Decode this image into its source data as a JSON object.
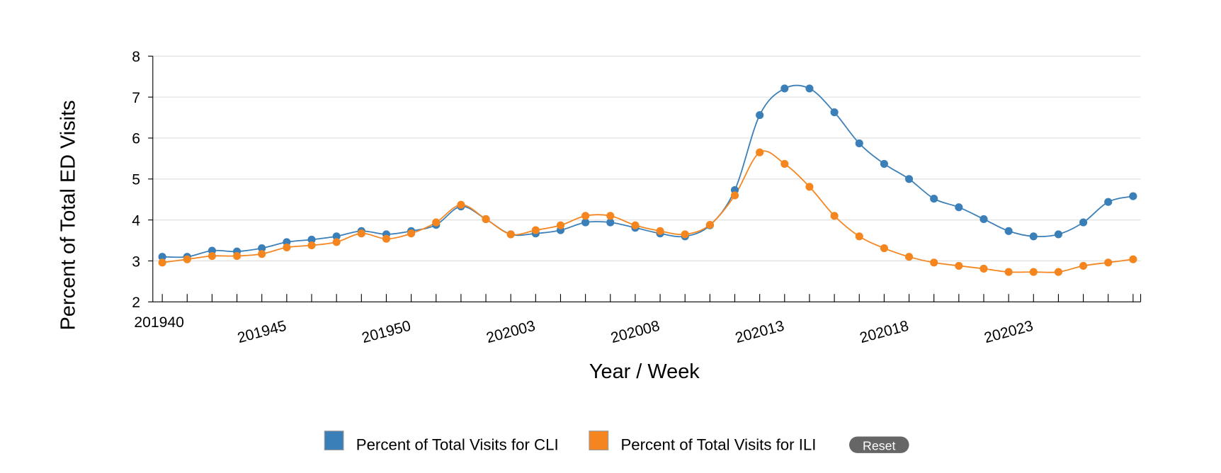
{
  "chart_data": {
    "type": "line",
    "ylabel": "Percent of Total ED Visits",
    "xlabel": "Year / Week",
    "categories": [
      "201940",
      null,
      null,
      null,
      null,
      "201945",
      null,
      null,
      null,
      null,
      "201950",
      null,
      null,
      null,
      null,
      "202003",
      null,
      null,
      null,
      null,
      "202008",
      null,
      null,
      null,
      null,
      "202013",
      null,
      null,
      null,
      null,
      "202018",
      null,
      null,
      null,
      null,
      "202023",
      null,
      null,
      null,
      null
    ],
    "series": [
      {
        "name": "Percent of Total Visits for CLI",
        "color": "#3a7fb8",
        "values": [
          3.1,
          3.1,
          3.25,
          3.23,
          3.31,
          3.46,
          3.52,
          3.6,
          3.73,
          3.65,
          3.73,
          3.88,
          4.33,
          4.02,
          3.65,
          3.67,
          3.75,
          3.94,
          3.94,
          3.81,
          3.67,
          3.6,
          3.87,
          4.73,
          6.56,
          7.21,
          7.21,
          6.63,
          5.87,
          5.37,
          5.0,
          4.52,
          4.31,
          4.02,
          3.73,
          3.6,
          3.65,
          3.94,
          4.44,
          4.58
        ]
      },
      {
        "name": "Percent of Total Visits for ILI",
        "color": "#f5861f",
        "values": [
          2.96,
          3.04,
          3.12,
          3.12,
          3.17,
          3.33,
          3.38,
          3.46,
          3.67,
          3.54,
          3.67,
          3.94,
          4.37,
          4.02,
          3.65,
          3.75,
          3.87,
          4.1,
          4.1,
          3.87,
          3.73,
          3.65,
          3.88,
          4.6,
          5.65,
          5.37,
          4.81,
          4.1,
          3.6,
          3.31,
          3.1,
          2.96,
          2.88,
          2.81,
          2.73,
          2.73,
          2.73,
          2.88,
          2.96,
          3.04
        ]
      }
    ],
    "ylim": [
      2,
      8
    ],
    "yticks": [
      2,
      3,
      4,
      5,
      6,
      7,
      8
    ],
    "grid": true,
    "reset_button": "Reset"
  }
}
